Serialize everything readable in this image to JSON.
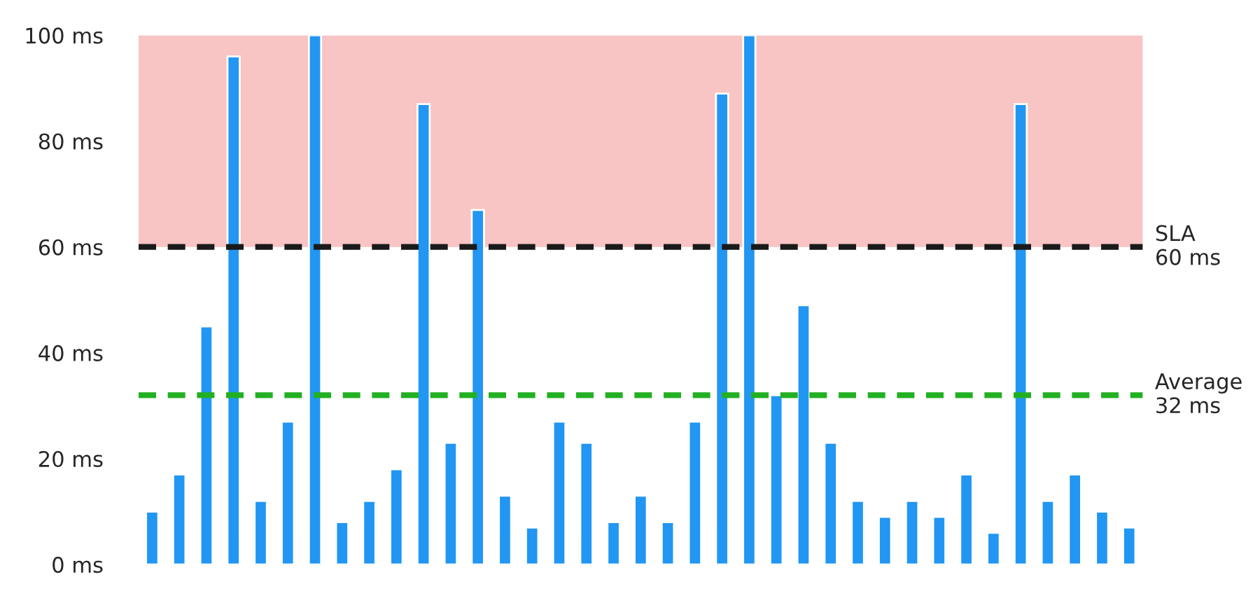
{
  "chart_data": {
    "type": "bar",
    "categories": [
      null,
      null,
      null,
      null,
      null,
      null,
      null,
      null,
      null,
      null,
      null,
      null,
      null,
      null,
      null,
      null,
      null,
      null,
      null,
      null,
      null,
      null,
      null,
      null,
      null,
      null,
      null,
      null,
      null,
      null,
      null,
      null,
      null,
      null,
      null,
      null,
      null
    ],
    "values": [
      10,
      17,
      45,
      96,
      12,
      27,
      100,
      8,
      12,
      18,
      87,
      23,
      67,
      13,
      7,
      27,
      23,
      8,
      13,
      8,
      27,
      89,
      100,
      32,
      49,
      23,
      12,
      9,
      12,
      9,
      17,
      6,
      87,
      12,
      17,
      10,
      7
    ],
    "color": "#2196f3",
    "ylim": [
      0,
      100
    ],
    "yticks": [
      {
        "value": 0,
        "label": "0 ms"
      },
      {
        "value": 20,
        "label": "20 ms"
      },
      {
        "value": 40,
        "label": "40 ms"
      },
      {
        "value": 60,
        "label": "60 ms"
      },
      {
        "value": 80,
        "label": "80 ms"
      },
      {
        "value": 100,
        "label": "100 ms"
      }
    ],
    "tick_labels": "y",
    "grid": false,
    "ref_lines": [
      {
        "axis": "y",
        "value": 60,
        "label": "SLA\n60 ms",
        "color": "#1a1a1a",
        "line_style": "dashed"
      },
      {
        "axis": "y",
        "value": 32,
        "label": "Average\n32 ms",
        "color": "#22b022",
        "line_style": "dashed"
      }
    ],
    "bands": [
      {
        "axis": "y",
        "from": 60,
        "to": 100,
        "color": "#f29494"
      }
    ]
  }
}
